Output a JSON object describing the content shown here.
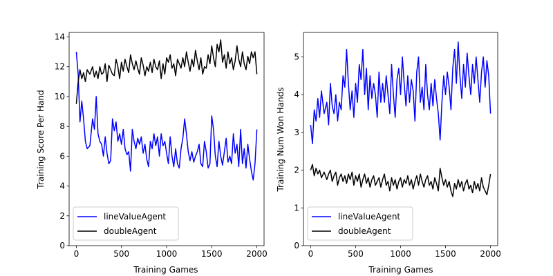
{
  "colors": {
    "lineValueAgent": "#0000ff",
    "doubleAgent": "#000000",
    "frame": "#000000",
    "background": "#ffffff"
  },
  "chart_data": [
    {
      "type": "line",
      "xlabel": "Training Games",
      "ylabel": "Training Score Per Hand",
      "xlim": [
        -80,
        2080
      ],
      "ylim": [
        0,
        14.3
      ],
      "xticks": [
        0,
        500,
        1000,
        1500,
        2000
      ],
      "yticks": [
        0,
        2,
        4,
        6,
        8,
        10,
        12,
        14
      ],
      "legend": "lower-left",
      "grid": false,
      "series": [
        {
          "name": "lineValueAgent",
          "color": "#0000ff",
          "x": [
            0,
            20,
            40,
            60,
            80,
            100,
            120,
            150,
            180,
            200,
            220,
            240,
            260,
            280,
            300,
            320,
            340,
            360,
            380,
            400,
            420,
            440,
            460,
            480,
            500,
            520,
            540,
            560,
            580,
            600,
            620,
            640,
            660,
            680,
            700,
            720,
            740,
            760,
            780,
            800,
            820,
            840,
            860,
            880,
            900,
            920,
            940,
            960,
            980,
            1000,
            1020,
            1040,
            1060,
            1080,
            1100,
            1120,
            1140,
            1160,
            1180,
            1200,
            1220,
            1240,
            1260,
            1280,
            1300,
            1320,
            1340,
            1360,
            1380,
            1400,
            1420,
            1440,
            1460,
            1480,
            1500,
            1520,
            1540,
            1560,
            1580,
            1600,
            1620,
            1640,
            1660,
            1680,
            1700,
            1720,
            1740,
            1760,
            1780,
            1800,
            1820,
            1840,
            1860,
            1880,
            1900,
            1920,
            1940,
            1960,
            1980,
            2000
          ],
          "y": [
            13.0,
            11.5,
            8.3,
            9.7,
            8.5,
            7.0,
            6.5,
            6.7,
            8.5,
            7.8,
            10.0,
            7.5,
            7.0,
            6.8,
            6.0,
            7.3,
            6.2,
            5.5,
            5.7,
            8.5,
            7.7,
            8.3,
            7.0,
            7.5,
            6.8,
            7.8,
            6.5,
            6.1,
            6.3,
            5.0,
            7.8,
            7.0,
            6.5,
            7.2,
            6.8,
            7.3,
            6.2,
            6.8,
            5.8,
            5.3,
            7.0,
            6.5,
            7.5,
            6.7,
            7.3,
            6.0,
            7.5,
            6.7,
            7.0,
            6.2,
            5.5,
            7.3,
            6.0,
            5.3,
            6.5,
            5.5,
            5.2,
            6.5,
            7.2,
            8.5,
            7.5,
            6.3,
            5.7,
            6.3,
            5.6,
            6.0,
            6.3,
            6.8,
            5.5,
            5.3,
            7.0,
            6.3,
            5.2,
            5.5,
            8.7,
            7.8,
            6.0,
            5.3,
            7.0,
            6.0,
            5.4,
            6.3,
            7.2,
            5.6,
            6.0,
            5.5,
            7.5,
            6.2,
            6.8,
            5.3,
            7.8,
            5.5,
            6.5,
            5.2,
            6.8,
            5.8,
            5.0,
            4.4,
            5.5,
            7.8
          ]
        },
        {
          "name": "doubleAgent",
          "color": "#000000",
          "x": [
            0,
            20,
            40,
            60,
            80,
            100,
            120,
            150,
            180,
            200,
            220,
            240,
            260,
            280,
            300,
            320,
            340,
            360,
            380,
            400,
            420,
            440,
            460,
            480,
            500,
            520,
            540,
            560,
            580,
            600,
            620,
            640,
            660,
            680,
            700,
            720,
            740,
            760,
            780,
            800,
            820,
            840,
            860,
            880,
            900,
            920,
            940,
            960,
            980,
            1000,
            1020,
            1040,
            1060,
            1080,
            1100,
            1120,
            1140,
            1160,
            1180,
            1200,
            1220,
            1240,
            1260,
            1280,
            1300,
            1320,
            1340,
            1360,
            1380,
            1400,
            1420,
            1440,
            1460,
            1480,
            1500,
            1520,
            1540,
            1560,
            1580,
            1600,
            1620,
            1640,
            1660,
            1680,
            1700,
            1720,
            1740,
            1760,
            1780,
            1800,
            1820,
            1840,
            1860,
            1880,
            1900,
            1920,
            1940,
            1960,
            1980,
            2000
          ],
          "y": [
            9.5,
            11.0,
            11.8,
            11.2,
            11.6,
            11.0,
            11.8,
            11.5,
            12.0,
            11.3,
            11.7,
            11.2,
            12.0,
            11.5,
            11.6,
            12.2,
            11.0,
            12.1,
            11.8,
            11.5,
            11.4,
            12.5,
            12.0,
            11.2,
            12.3,
            11.7,
            12.5,
            12.0,
            11.6,
            12.8,
            12.2,
            11.8,
            12.4,
            11.9,
            11.5,
            12.6,
            12.1,
            11.4,
            12.0,
            11.7,
            12.3,
            11.6,
            12.5,
            12.0,
            11.8,
            12.4,
            11.2,
            12.2,
            11.5,
            12.6,
            12.3,
            12.8,
            11.9,
            12.2,
            11.4,
            12.5,
            12.2,
            11.9,
            12.6,
            12.0,
            13.0,
            12.3,
            11.7,
            12.5,
            12.0,
            13.1,
            12.4,
            11.8,
            12.6,
            11.5,
            12.0,
            11.9,
            12.8,
            12.2,
            13.4,
            12.6,
            12.0,
            13.5,
            13.0,
            13.8,
            12.3,
            12.8,
            11.9,
            13.0,
            12.2,
            12.6,
            11.8,
            12.4,
            13.4,
            12.5,
            12.0,
            13.0,
            12.2,
            11.8,
            12.7,
            12.2,
            13.0,
            12.6,
            13.0,
            11.5
          ]
        }
      ]
    },
    {
      "type": "line",
      "xlabel": "Training Games",
      "ylabel": "Training Num Won Hands",
      "xlim": [
        -80,
        2080
      ],
      "ylim": [
        0,
        5.65
      ],
      "xticks": [
        0,
        500,
        1000,
        1500,
        2000
      ],
      "yticks": [
        0,
        1,
        2,
        3,
        4,
        5
      ],
      "legend": "lower-left",
      "grid": false,
      "series": [
        {
          "name": "lineValueAgent",
          "color": "#0000ff",
          "x": [
            0,
            20,
            40,
            60,
            80,
            100,
            120,
            150,
            180,
            200,
            220,
            240,
            260,
            280,
            300,
            320,
            340,
            360,
            380,
            400,
            420,
            440,
            460,
            480,
            500,
            520,
            540,
            560,
            580,
            600,
            620,
            640,
            660,
            680,
            700,
            720,
            740,
            760,
            780,
            800,
            820,
            840,
            860,
            880,
            900,
            920,
            940,
            960,
            980,
            1000,
            1020,
            1040,
            1060,
            1080,
            1100,
            1120,
            1140,
            1160,
            1180,
            1200,
            1220,
            1240,
            1260,
            1280,
            1300,
            1320,
            1340,
            1360,
            1380,
            1400,
            1420,
            1440,
            1460,
            1480,
            1500,
            1520,
            1540,
            1560,
            1580,
            1600,
            1620,
            1640,
            1660,
            1680,
            1700,
            1720,
            1740,
            1760,
            1780,
            1800,
            1820,
            1840,
            1860,
            1880,
            1900,
            1920,
            1940,
            1960,
            1980,
            2000
          ],
          "y": [
            3.2,
            2.7,
            3.6,
            3.3,
            3.9,
            3.4,
            4.1,
            3.5,
            3.8,
            3.2,
            4.3,
            3.7,
            3.5,
            4.0,
            3.3,
            3.8,
            3.6,
            4.5,
            4.2,
            5.2,
            4.3,
            3.6,
            4.1,
            3.4,
            4.3,
            3.8,
            4.8,
            4.4,
            5.2,
            4.0,
            4.7,
            3.6,
            4.5,
            3.9,
            4.3,
            4.0,
            3.4,
            4.6,
            3.8,
            4.3,
            3.8,
            4.5,
            4.0,
            3.5,
            4.8,
            4.0,
            3.4,
            4.4,
            4.7,
            4.0,
            5.0,
            4.3,
            3.7,
            4.5,
            3.8,
            4.4,
            4.1,
            3.3,
            4.6,
            5.0,
            3.8,
            4.2,
            3.6,
            4.8,
            4.0,
            3.6,
            4.3,
            3.7,
            4.4,
            3.9,
            3.5,
            2.8,
            3.8,
            4.5,
            4.0,
            4.6,
            4.2,
            3.6,
            4.7,
            5.2,
            4.3,
            5.4,
            4.5,
            3.9,
            4.8,
            4.2,
            5.1,
            4.5,
            4.0,
            4.8,
            4.3,
            5.0,
            4.4,
            3.8,
            4.6,
            5.0,
            4.2,
            4.9,
            4.5,
            3.5
          ]
        },
        {
          "name": "doubleAgent",
          "color": "#000000",
          "x": [
            0,
            20,
            40,
            60,
            80,
            100,
            120,
            150,
            180,
            200,
            220,
            240,
            260,
            280,
            300,
            320,
            340,
            360,
            380,
            400,
            420,
            440,
            460,
            480,
            500,
            520,
            540,
            560,
            580,
            600,
            620,
            640,
            660,
            680,
            700,
            720,
            740,
            760,
            780,
            800,
            820,
            840,
            860,
            880,
            900,
            920,
            940,
            960,
            980,
            1000,
            1020,
            1040,
            1060,
            1080,
            1100,
            1120,
            1140,
            1160,
            1180,
            1200,
            1220,
            1240,
            1260,
            1280,
            1300,
            1320,
            1340,
            1360,
            1380,
            1400,
            1420,
            1440,
            1460,
            1480,
            1500,
            1520,
            1540,
            1560,
            1580,
            1600,
            1620,
            1640,
            1660,
            1680,
            1700,
            1720,
            1740,
            1760,
            1780,
            1800,
            1820,
            1840,
            1860,
            1880,
            1900,
            1920,
            1940,
            1960,
            1980,
            2000
          ],
          "y": [
            2.0,
            2.15,
            1.85,
            2.05,
            1.9,
            2.0,
            1.8,
            1.95,
            1.75,
            1.9,
            2.0,
            1.7,
            1.85,
            1.95,
            1.6,
            1.8,
            1.9,
            1.7,
            1.85,
            1.65,
            1.9,
            1.75,
            1.95,
            1.6,
            1.85,
            1.7,
            1.9,
            1.55,
            1.75,
            1.9,
            1.65,
            1.8,
            1.55,
            1.75,
            1.85,
            1.6,
            1.7,
            1.8,
            1.55,
            1.75,
            1.9,
            1.6,
            1.7,
            1.45,
            1.8,
            1.6,
            1.75,
            1.5,
            1.7,
            1.8,
            1.55,
            1.75,
            1.65,
            1.85,
            1.6,
            1.75,
            1.5,
            1.7,
            1.85,
            1.6,
            1.9,
            1.7,
            1.55,
            1.75,
            1.85,
            1.6,
            1.7,
            1.5,
            1.8,
            1.65,
            1.45,
            2.05,
            1.8,
            1.6,
            1.75,
            1.55,
            1.7,
            1.45,
            1.3,
            1.65,
            1.5,
            1.75,
            1.55,
            1.7,
            1.45,
            1.65,
            1.75,
            1.5,
            1.6,
            1.4,
            1.7,
            1.5,
            1.65,
            1.45,
            1.8,
            1.55,
            1.45,
            1.35,
            1.6,
            1.9
          ]
        }
      ]
    }
  ]
}
